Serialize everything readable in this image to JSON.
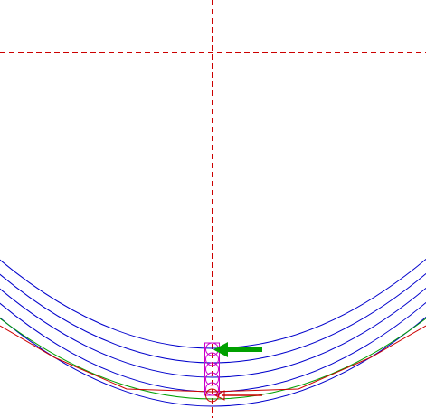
{
  "colors": {
    "background": "#ffffff",
    "guide": "#cc0000",
    "arc": "#0000cc",
    "green_curve": "#00a000",
    "red_curve": "#cc0000",
    "circles": "#cc00cc",
    "bottom_circle": "#cc0000",
    "green_arrow": "#00a000",
    "red_arrow": "#cc0000"
  },
  "icons": {
    "pointer_top": "left-arrow-icon",
    "pointer_bottom": "left-arrow-icon"
  },
  "diagram": {
    "blue_arc_count": 5,
    "stacked_circle_count": 5
  }
}
